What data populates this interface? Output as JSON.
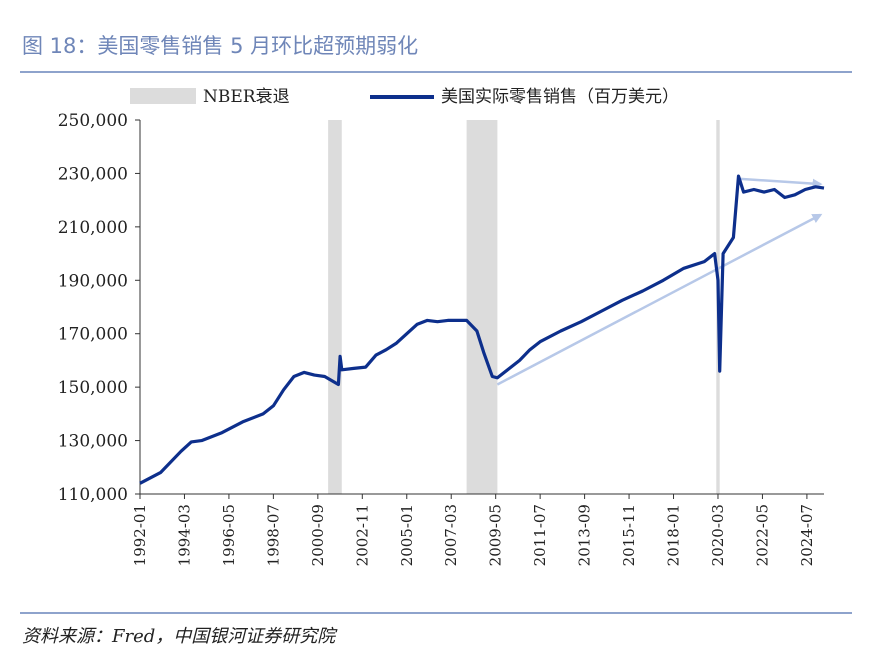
{
  "figure": {
    "title": "图 18：美国零售销售 5 月环比超预期弱化",
    "source": "资料来源：Fred，中国银河证券研究院"
  },
  "chart_data": {
    "type": "line",
    "title": "",
    "xlabel": "",
    "ylabel": "",
    "ylim": [
      110000,
      250000
    ],
    "yticks": [
      "110,000",
      "130,000",
      "150,000",
      "170,000",
      "190,000",
      "210,000",
      "230,000",
      "250,000"
    ],
    "xlim": [
      "1992-01",
      "2025-05"
    ],
    "xticks": [
      "1992-01",
      "1994-03",
      "1996-05",
      "1998-07",
      "2000-09",
      "2002-11",
      "2005-01",
      "2007-03",
      "2009-05",
      "2011-07",
      "2013-09",
      "2015-11",
      "2018-01",
      "2020-03",
      "2022-05",
      "2024-07"
    ],
    "legend": {
      "placement": "top",
      "entries": [
        "NBER衰退",
        "美国实际零售销售（百万美元）"
      ]
    },
    "colors": {
      "line": "#0d2f8c",
      "recession": "#dcdcdc",
      "arrow": "#b7c8e8"
    },
    "recessions": [
      {
        "name": "NBER衰退",
        "start": "2001-03",
        "end": "2001-11"
      },
      {
        "name": "NBER衰退",
        "start": "2007-12",
        "end": "2009-06"
      },
      {
        "name": "NBER衰退",
        "start": "2020-02",
        "end": "2020-04"
      }
    ],
    "series": [
      {
        "name": "美国实际零售销售（百万美元）",
        "points": [
          [
            "1992-01",
            114000
          ],
          [
            "1993-01",
            118000
          ],
          [
            "1994-01",
            126000
          ],
          [
            "1994-07",
            129500
          ],
          [
            "1995-01",
            130000
          ],
          [
            "1996-01",
            133000
          ],
          [
            "1997-01",
            137000
          ],
          [
            "1998-01",
            140000
          ],
          [
            "1998-07",
            143000
          ],
          [
            "1999-01",
            149000
          ],
          [
            "1999-07",
            154000
          ],
          [
            "2000-01",
            155500
          ],
          [
            "2000-07",
            154500
          ],
          [
            "2001-01",
            154000
          ],
          [
            "2001-09",
            151000
          ],
          [
            "2001-10",
            161500
          ],
          [
            "2001-11",
            156500
          ],
          [
            "2002-06",
            157000
          ],
          [
            "2003-01",
            157500
          ],
          [
            "2003-07",
            162000
          ],
          [
            "2004-01",
            164000
          ],
          [
            "2004-07",
            166500
          ],
          [
            "2005-01",
            170000
          ],
          [
            "2005-07",
            173500
          ],
          [
            "2006-01",
            175000
          ],
          [
            "2006-07",
            174500
          ],
          [
            "2007-01",
            175000
          ],
          [
            "2007-12",
            175000
          ],
          [
            "2008-06",
            171000
          ],
          [
            "2008-10",
            163000
          ],
          [
            "2009-03",
            154000
          ],
          [
            "2009-06",
            153500
          ],
          [
            "2010-01",
            157000
          ],
          [
            "2010-07",
            160000
          ],
          [
            "2011-01",
            164000
          ],
          [
            "2011-07",
            167000
          ],
          [
            "2012-07",
            171000
          ],
          [
            "2013-07",
            174500
          ],
          [
            "2014-07",
            178500
          ],
          [
            "2015-07",
            182500
          ],
          [
            "2016-07",
            186000
          ],
          [
            "2017-07",
            190000
          ],
          [
            "2018-07",
            194500
          ],
          [
            "2019-07",
            197000
          ],
          [
            "2020-01",
            200000
          ],
          [
            "2020-03",
            190000
          ],
          [
            "2020-04",
            156000
          ],
          [
            "2020-06",
            200000
          ],
          [
            "2020-12",
            206000
          ],
          [
            "2021-03",
            229000
          ],
          [
            "2021-06",
            223000
          ],
          [
            "2021-12",
            224000
          ],
          [
            "2022-06",
            223000
          ],
          [
            "2022-12",
            224000
          ],
          [
            "2023-06",
            221000
          ],
          [
            "2023-12",
            222000
          ],
          [
            "2024-06",
            224000
          ],
          [
            "2024-12",
            225000
          ],
          [
            "2025-05",
            224500
          ]
        ]
      }
    ],
    "annotations": [
      {
        "type": "arrow",
        "from": [
          "2009-06",
          151000
        ],
        "to": [
          "2025-03",
          214500
        ]
      },
      {
        "type": "arrow",
        "from": [
          "2021-03",
          228000
        ],
        "to": [
          "2025-03",
          226000
        ]
      }
    ]
  }
}
